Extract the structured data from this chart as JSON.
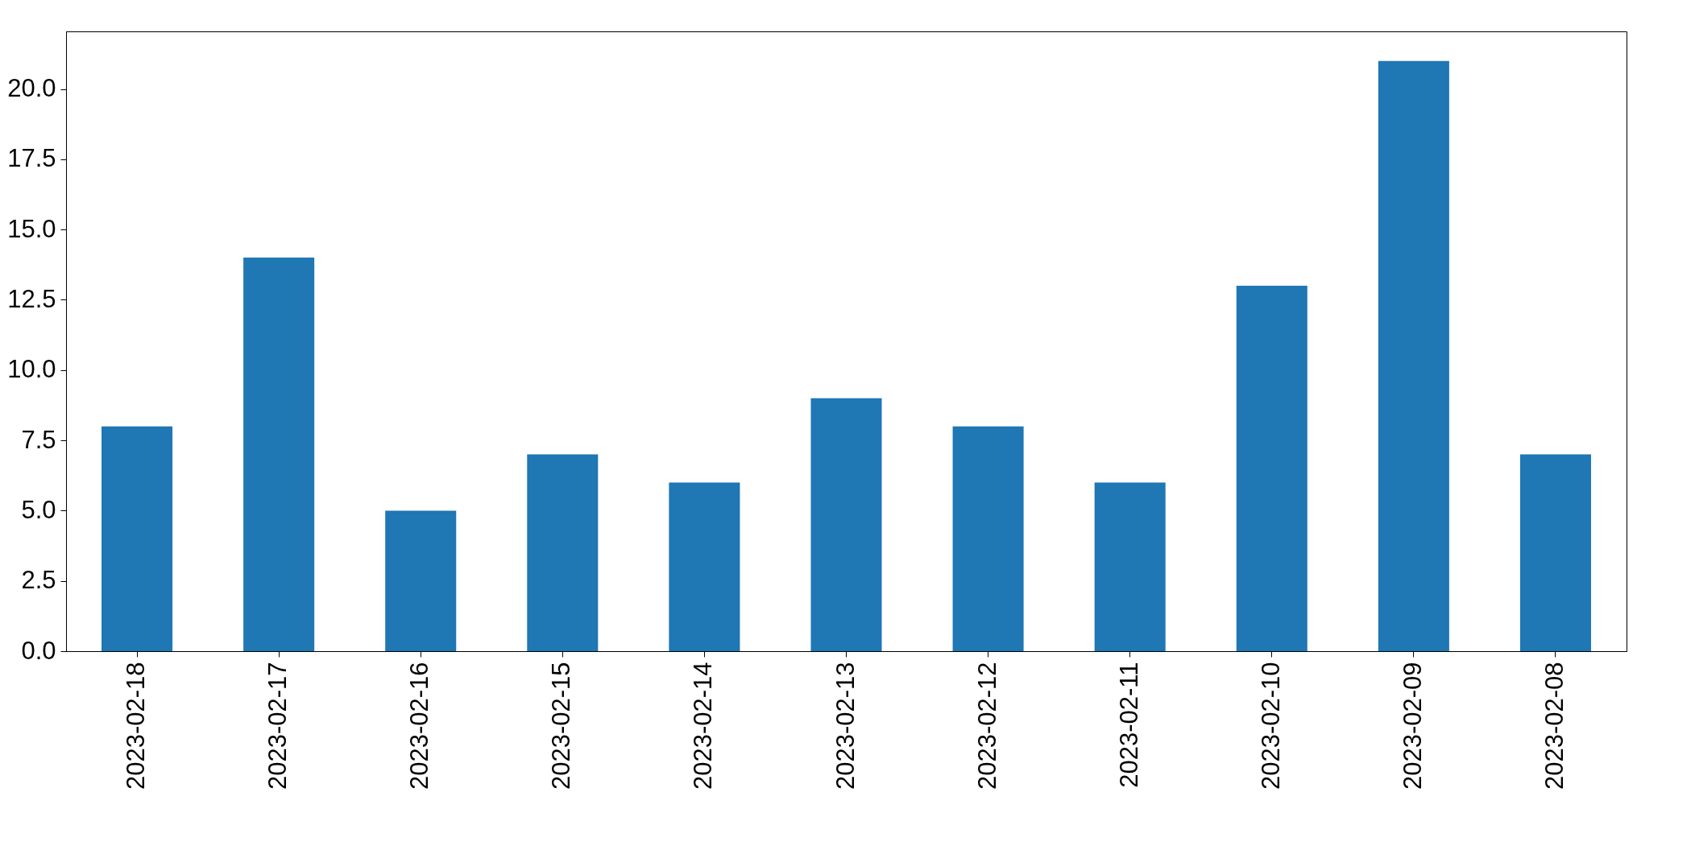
{
  "chart_data": {
    "type": "bar",
    "categories": [
      "2023-02-18",
      "2023-02-17",
      "2023-02-16",
      "2023-02-15",
      "2023-02-14",
      "2023-02-13",
      "2023-02-12",
      "2023-02-11",
      "2023-02-10",
      "2023-02-09",
      "2023-02-08"
    ],
    "values": [
      8,
      14,
      5,
      7,
      6,
      9,
      8,
      6,
      13,
      21,
      7
    ],
    "color": "#1f77b4",
    "ylim": [
      0,
      22.05
    ],
    "yticks": [
      {
        "value": 0,
        "label": "0.0"
      },
      {
        "value": 2.5,
        "label": "2.5"
      },
      {
        "value": 5,
        "label": "5.0"
      },
      {
        "value": 7.5,
        "label": "7.5"
      },
      {
        "value": 10,
        "label": "10.0"
      },
      {
        "value": 12.5,
        "label": "12.5"
      },
      {
        "value": 15,
        "label": "15.0"
      },
      {
        "value": 17.5,
        "label": "17.5"
      },
      {
        "value": 20,
        "label": "20.0"
      }
    ],
    "grid": false
  }
}
